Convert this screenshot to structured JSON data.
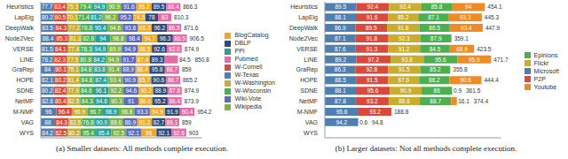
{
  "chart_data": [
    {
      "type": "bar",
      "title": "(a) Smaller datasets: All methods complete execution.",
      "orientation": "horizontal",
      "stacked": true,
      "data_labels": true,
      "legend": "right",
      "grid": false,
      "tick_labels": "y",
      "categories": [
        "Heuristics",
        "LapEig",
        "DeepWalk",
        "Node2Vec",
        "VERSE",
        "LINE",
        "GraRep",
        "HOPE",
        "SDNE",
        "NetMF",
        "M-NMF",
        "VAG",
        "WYS"
      ],
      "xlim": [
        0,
        1000
      ],
      "xticks": [
        0,
        1000
      ],
      "totals": [
        866.3,
        810.3,
        871.6,
        906.5,
        874.9,
        850.8,
        859.0,
        865.2,
        874.9,
        873.9,
        954.2,
        859.0,
        903.0
      ],
      "series": [
        {
          "name": "W-Texas",
          "color": "#4f7fb0",
          "values": [
            77.7,
            80.2,
            83.5,
            88.4,
            81.5,
            78.2,
            84.0,
            82.1,
            80.2,
            82.6,
            96.0,
            88.0,
            84.2
          ]
        },
        {
          "name": "W-Cornell",
          "color": "#d94a3d",
          "values": [
            83.4,
            80.5,
            84.3,
            85.3,
            84.1,
            82.3,
            80.1,
            80.2,
            82.4,
            80.4,
            96.4,
            84.3,
            82.5
          ]
        },
        {
          "name": "W-Washington",
          "color": "#c9ad2e",
          "values": [
            75.3,
            70.1,
            77.2,
            81.3,
            77.4,
            77.5,
            75.1,
            81.4,
            77.9,
            82.5,
            96.9,
            83.5,
            80.2
          ]
        },
        {
          "name": "W-Wisconsin",
          "color": "#4caf50",
          "values": [
            79.4,
            71.4,
            78.8,
            82.8,
            78.3,
            80.8,
            84.8,
            84.8,
            84.6,
            84.3,
            96.7,
            76.8,
            95.4
          ]
        },
        {
          "name": "PPI",
          "color": "#27a39a",
          "values": [
            94.9,
            81.2,
            90.4,
            94.0,
            94.9,
            84.2,
            83.8,
            87.4,
            96.1,
            94.6,
            98.9,
            90.9,
            95.4
          ]
        },
        {
          "name": "Wikipedia",
          "color": "#7cb342",
          "values": [
            90.9,
            96.2,
            94.6,
            98.8,
            89.9,
            94.9,
            91.4,
            93.4,
            92.2,
            90.3,
            98.8,
            88.6,
            92.5
          ]
        },
        {
          "name": "Wiki-Vote",
          "color": "#5c6bc0",
          "values": [
            91.6,
            95.2,
            93.8,
            98.4,
            94.9,
            91.7,
            88.9,
            90.9,
            94.6,
            91.0,
            93.3,
            86.9,
            92.1
          ]
        },
        {
          "name": "BlogCatalog",
          "color": "#f2a922",
          "values": [
            95.2,
            74.5,
            86.3,
            94.7,
            88.5,
            87.4,
            86.4,
            85.7,
            90.2,
            86.6,
            94.9,
            91.2,
            96.0
          ]
        },
        {
          "name": "DBLP",
          "color": "#2f4b7c",
          "values": [
            89.5,
            78.0,
            96.2,
            96.3,
            92.6,
            89.3,
            95.8,
            90.6,
            88.9,
            95.2,
            91.9,
            82.7,
            92.1
          ]
        },
        {
          "name": "Pubmed",
          "color": "#e86aa6",
          "values": [
            88.4,
            83.0,
            86.5,
            86.5,
            92.8,
            84.5,
            88.7,
            88.7,
            87.8,
            86.4,
            90.4,
            86.1,
            92.6
          ]
        }
      ]
    },
    {
      "type": "bar",
      "title": "(b) Larger datasets: Not all methods complete execution.",
      "orientation": "horizontal",
      "stacked": true,
      "data_labels": true,
      "legend": "right",
      "grid": false,
      "tick_labels": "y",
      "categories": [
        "Heuristics",
        "LapEig",
        "DeepWalk",
        "Node2Vec",
        "VERSE",
        "LINE",
        "GraRep",
        "HOPE",
        "SDNE",
        "NetMF",
        "M-NMF",
        "VAG",
        "WYS"
      ],
      "xlim": [
        0,
        500
      ],
      "xticks": [
        0,
        500
      ],
      "totals": [
        454.1,
        445.3,
        447.9,
        359.1,
        423.5,
        471.7,
        355.8,
        444.4,
        361.5,
        374.4,
        188.8,
        94.8,
        null
      ],
      "series": [
        {
          "name": "Microsoft",
          "color": "#4f7fb0",
          "values": [
            89.5,
            88.1,
            86.9,
            87.1,
            87.6,
            89.2,
            86.3,
            88.5,
            88.1,
            87.8,
            95.6,
            94.2,
            null
          ]
        },
        {
          "name": "P2P",
          "color": "#d94a3d",
          "values": [
            92.4,
            91.6,
            89.5,
            91.8,
            91.3,
            97.2,
            92.8,
            91.5,
            95.6,
            93.2,
            93.2,
            0.6,
            null
          ]
        },
        {
          "name": "Flickr",
          "color": "#c9ad2e",
          "values": [
            92.4,
            85.2,
            91.6,
            92.3,
            91.2,
            93.8,
            91.5,
            87.6,
            90.9,
            88.6,
            null,
            null,
            null
          ]
        },
        {
          "name": "Epinions",
          "color": "#4caf50",
          "values": [
            85.8,
            87.1,
            86.5,
            87.9,
            84.5,
            95.6,
            85.2,
            86.2,
            86.0,
            88.7,
            null,
            null,
            null
          ]
        },
        {
          "name": "Youtube",
          "color": "#f08a24",
          "values": [
            94.0,
            93.3,
            93.4,
            null,
            68.9,
            95.9,
            null,
            90.6,
            0.9,
            16.1,
            null,
            null,
            null
          ]
        }
      ]
    }
  ]
}
